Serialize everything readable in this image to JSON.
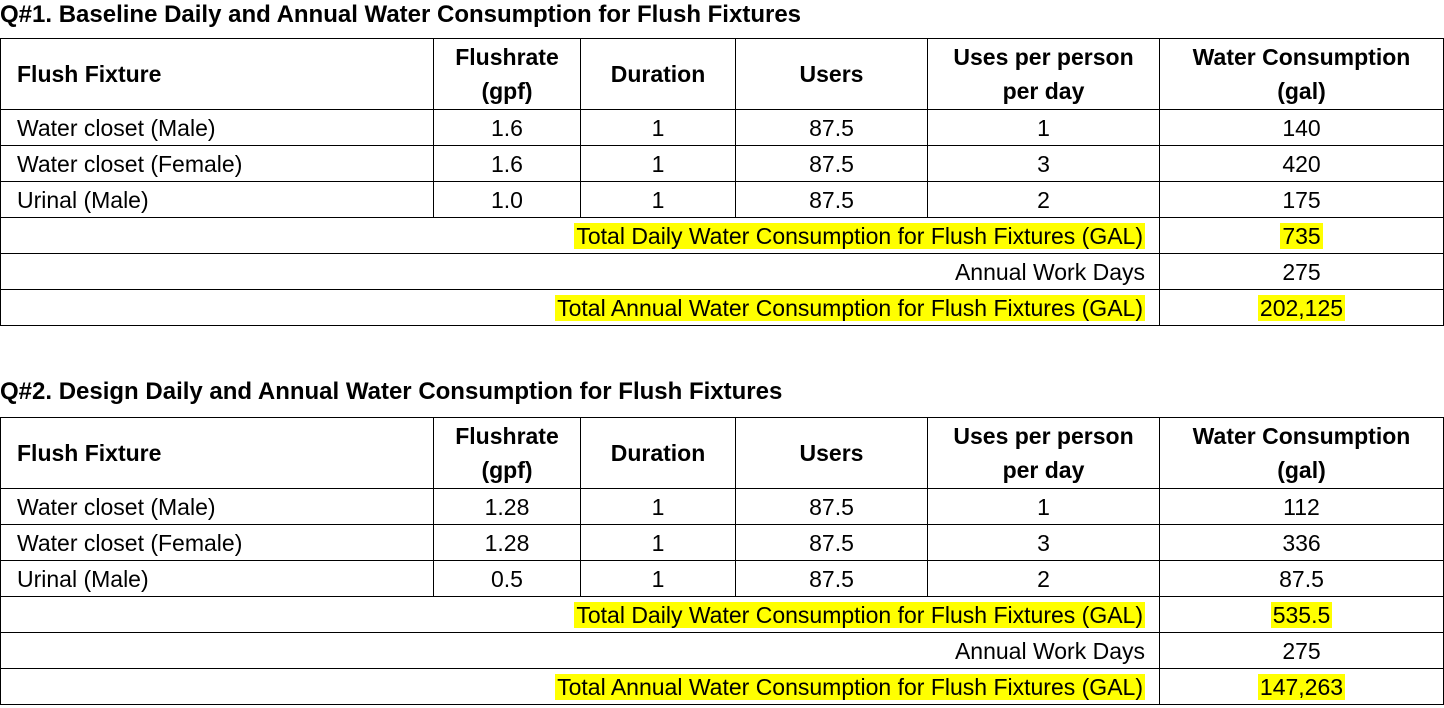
{
  "sections": [
    {
      "title": "Q#1. Baseline Daily and Annual Water Consumption for Flush Fixtures",
      "headers": {
        "fixture": "Flush Fixture",
        "flushrate": [
          "Flushrate",
          "(gpf)"
        ],
        "duration": "Duration",
        "users": "Users",
        "uses": [
          "Uses per person",
          "per day"
        ],
        "consumption": [
          "Water Consumption",
          "(gal)"
        ]
      },
      "rows": [
        {
          "fixture": "Water closet (Male)",
          "flushrate": "1.6",
          "duration": "1",
          "users": "87.5",
          "uses": "1",
          "consumption": "140"
        },
        {
          "fixture": "Water closet (Female)",
          "flushrate": "1.6",
          "duration": "1",
          "users": "87.5",
          "uses": "3",
          "consumption": "420"
        },
        {
          "fixture": "Urinal (Male)",
          "flushrate": "1.0",
          "duration": "1",
          "users": "87.5",
          "uses": "2",
          "consumption": "175"
        }
      ],
      "summary": {
        "daily_label": "Total Daily Water Consumption for Flush Fixtures (GAL)",
        "daily_value": "735",
        "workdays_label": "Annual Work Days",
        "workdays_value": "275",
        "annual_label": "Total Annual Water Consumption for Flush Fixtures (GAL)",
        "annual_value": "202,125"
      }
    },
    {
      "title": "Q#2. Design Daily and Annual Water Consumption for Flush Fixtures",
      "headers": {
        "fixture": "Flush Fixture",
        "flushrate": [
          "Flushrate",
          "(gpf)"
        ],
        "duration": "Duration",
        "users": "Users",
        "uses": [
          "Uses per person",
          "per day"
        ],
        "consumption": [
          "Water Consumption",
          "(gal)"
        ]
      },
      "rows": [
        {
          "fixture": "Water closet (Male)",
          "flushrate": "1.28",
          "duration": "1",
          "users": "87.5",
          "uses": "1",
          "consumption": "112"
        },
        {
          "fixture": "Water closet (Female)",
          "flushrate": "1.28",
          "duration": "1",
          "users": "87.5",
          "uses": "3",
          "consumption": "336"
        },
        {
          "fixture": "Urinal (Male)",
          "flushrate": "0.5",
          "duration": "1",
          "users": "87.5",
          "uses": "2",
          "consumption": "87.5"
        }
      ],
      "summary": {
        "daily_label": "Total Daily Water Consumption for Flush Fixtures (GAL)",
        "daily_value": "535.5",
        "workdays_label": "Annual Work Days",
        "workdays_value": "275",
        "annual_label": "Total Annual Water Consumption for Flush Fixtures (GAL)",
        "annual_value": "147,263"
      }
    }
  ],
  "colors": {
    "highlight": "#ffff00",
    "border": "#000000"
  }
}
